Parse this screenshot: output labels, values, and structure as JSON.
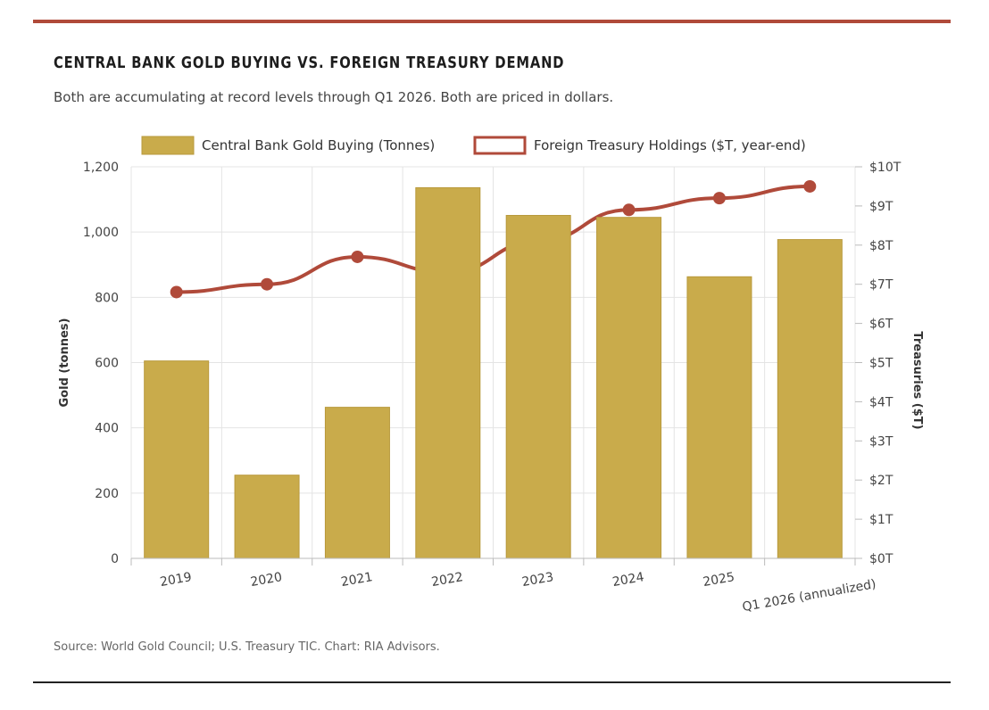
{
  "header": {
    "title": "CENTRAL BANK GOLD BUYING VS. FOREIGN TREASURY DEMAND",
    "subtitle": "Both are accumulating at record levels through Q1 2026. Both are priced in dollars."
  },
  "footer": {
    "source": "Source: World Gold Council; U.S. Treasury TIC. Chart: RIA Advisors."
  },
  "colors": {
    "bar": "#c9ab4b",
    "bar_stroke": "#b8993c",
    "line": "#b04a3a",
    "grid": "#e4e4e4",
    "top_rule": "#b04a3a"
  },
  "chart_data": {
    "type": "bar",
    "categories": [
      "2019",
      "2020",
      "2021",
      "2022",
      "2023",
      "2024",
      "2025",
      "Q1 2026 (annualized)"
    ],
    "series": [
      {
        "name": "Central Bank Gold Buying (Tonnes)",
        "type": "bar",
        "axis": "left",
        "values": [
          605,
          255,
          463,
          1136,
          1051,
          1045,
          863,
          977
        ]
      },
      {
        "name": "Foreign Treasury Holdings ($T, year-end)",
        "type": "line",
        "axis": "right",
        "values": [
          6.8,
          7.0,
          7.7,
          7.3,
          8.1,
          8.9,
          9.2,
          9.5
        ]
      }
    ],
    "ylabel": "Gold (tonnes)",
    "y2label": "Treasuries ($T)",
    "ylim": [
      0,
      1200
    ],
    "y2lim": [
      0,
      10
    ],
    "yticks": [
      "0",
      "200",
      "400",
      "600",
      "800",
      "1,000",
      "1,200"
    ],
    "y2ticks": [
      "$0T",
      "$1T",
      "$2T",
      "$3T",
      "$4T",
      "$5T",
      "$6T",
      "$7T",
      "$8T",
      "$9T",
      "$10T"
    ],
    "grid": true,
    "legend_position": "top"
  }
}
